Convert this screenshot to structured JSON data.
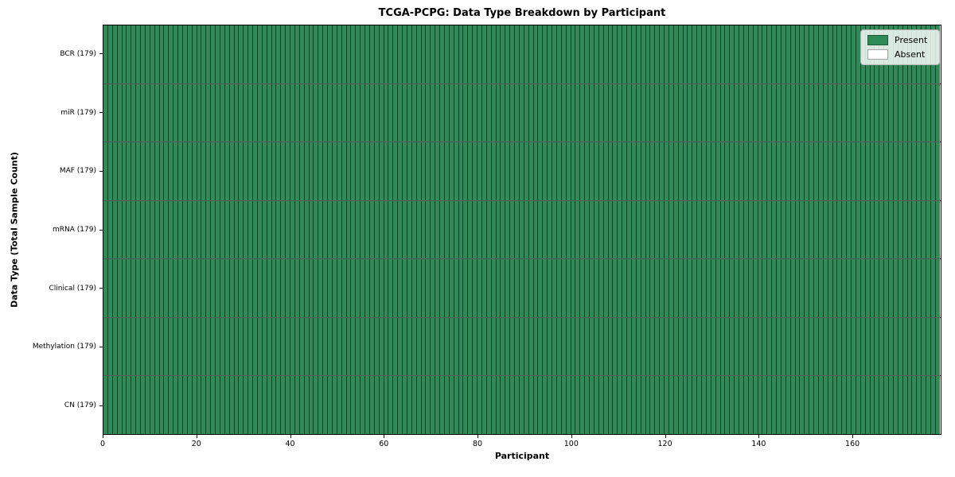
{
  "chart_data": {
    "type": "heatmap",
    "title": "TCGA-PCPG: Data Type Breakdown by Participant",
    "xlabel": "Participant",
    "ylabel": "Data Type (Total Sample Count)",
    "x_ticks": [
      0,
      20,
      40,
      60,
      80,
      100,
      120,
      140,
      160
    ],
    "x_range": [
      0,
      179
    ],
    "n_participants": 179,
    "categories_y": [
      "BCR (179)",
      "miR (179)",
      "MAF (179)",
      "mRNA (179)",
      "Clinical (179)",
      "Methylation (179)",
      "CN (179)"
    ],
    "series": [
      {
        "name": "BCR (179)",
        "present_count": 179,
        "absent_count": 0
      },
      {
        "name": "miR (179)",
        "present_count": 179,
        "absent_count": 0
      },
      {
        "name": "MAF (179)",
        "present_count": 179,
        "absent_count": 0
      },
      {
        "name": "mRNA (179)",
        "present_count": 179,
        "absent_count": 0
      },
      {
        "name": "Clinical (179)",
        "present_count": 179,
        "absent_count": 0
      },
      {
        "name": "Methylation (179)",
        "present_count": 179,
        "absent_count": 0
      },
      {
        "name": "CN (179)",
        "present_count": 179,
        "absent_count": 0
      }
    ],
    "all_cells_value": "Present",
    "grid": true,
    "legend": {
      "position": "upper right",
      "entries": [
        {
          "label": "Present",
          "color": "#2e8b57"
        },
        {
          "label": "Absent",
          "color": "#ffffff"
        }
      ]
    },
    "colors": {
      "present": "#2e8b57",
      "absent": "#ffffff",
      "gridline": "rgba(0,0,0,0.55)",
      "plot_border": "#000000",
      "background": "#ffffff"
    }
  }
}
